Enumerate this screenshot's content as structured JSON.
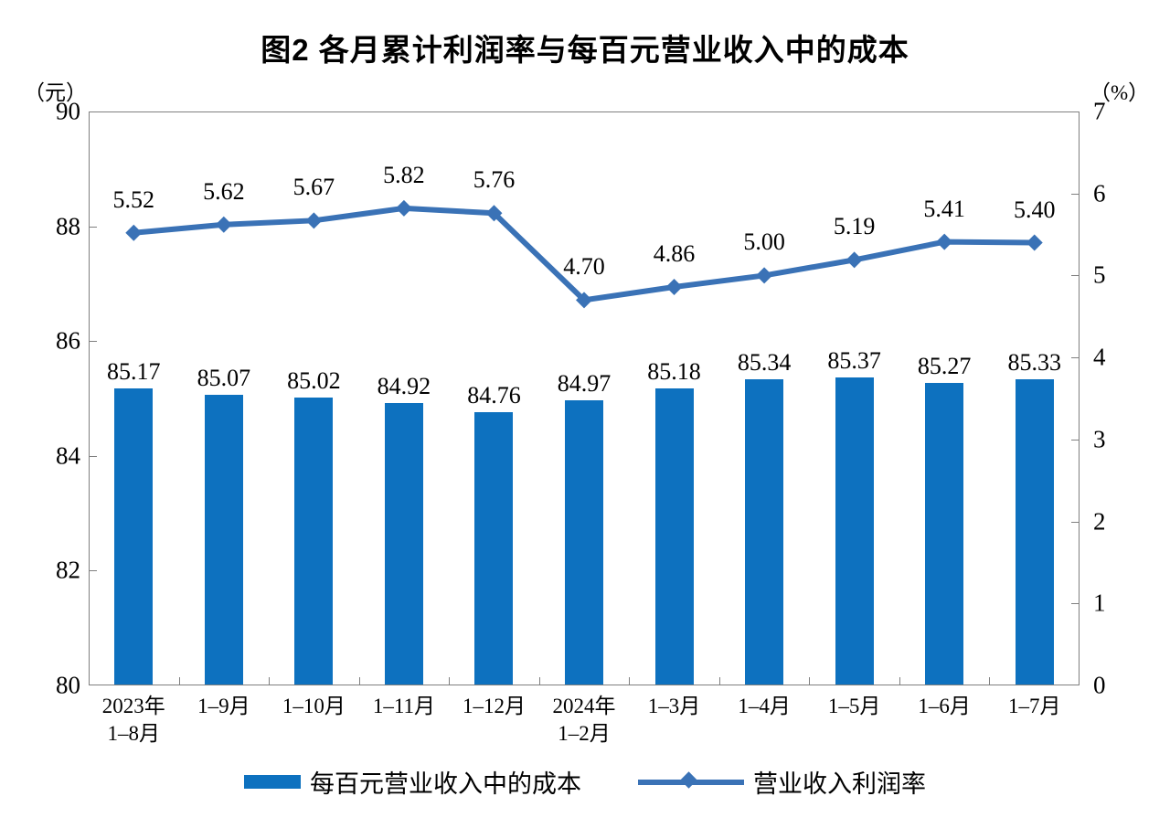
{
  "title": "图2 各月累计利润率与每百元营业收入中的成本",
  "chart_data": {
    "type": "bar",
    "subtype": "combo-bar-line-dual-axis",
    "title": "图2 各月累计利润率与每百元营业收入中的成本",
    "categories": [
      [
        "2023年",
        "1–8月"
      ],
      [
        "1–9月"
      ],
      [
        "1–10月"
      ],
      [
        "1–11月"
      ],
      [
        "1–12月"
      ],
      [
        "2024年",
        "1–2月"
      ],
      [
        "1–3月"
      ],
      [
        "1–4月"
      ],
      [
        "1–5月"
      ],
      [
        "1–6月"
      ],
      [
        "1–7月"
      ]
    ],
    "series": [
      {
        "name": "每百元营业收入中的成本",
        "type": "bar",
        "axis": "left",
        "color": "#0d71bf",
        "values": [
          85.17,
          85.07,
          85.02,
          84.92,
          84.76,
          84.97,
          85.18,
          85.34,
          85.37,
          85.27,
          85.33
        ],
        "labels": [
          "85.17",
          "85.07",
          "85.02",
          "84.92",
          "84.76",
          "84.97",
          "85.18",
          "85.34",
          "85.37",
          "85.27",
          "85.33"
        ]
      },
      {
        "name": "营业收入利润率",
        "type": "line",
        "axis": "right",
        "color": "#3a72b6",
        "marker": "diamond",
        "values": [
          5.52,
          5.62,
          5.67,
          5.82,
          5.76,
          4.7,
          4.86,
          5.0,
          5.19,
          5.41,
          5.4
        ],
        "labels": [
          "5.52",
          "5.62",
          "5.67",
          "5.82",
          "5.76",
          "4.70",
          "4.86",
          "5.00",
          "5.19",
          "5.41",
          "5.40"
        ]
      }
    ],
    "left_axis": {
      "unit": "（元）",
      "min": 80,
      "max": 90,
      "tick_step": 2,
      "ticks": [
        90,
        88,
        86,
        84,
        82,
        80
      ]
    },
    "right_axis": {
      "unit": "（%）",
      "min": 0,
      "max": 7,
      "tick_step": 1,
      "ticks": [
        7,
        6,
        5,
        4,
        3,
        2,
        1,
        0
      ]
    },
    "grid": false,
    "legend_position": "bottom",
    "plot_border_color": "#7f7f7f"
  }
}
